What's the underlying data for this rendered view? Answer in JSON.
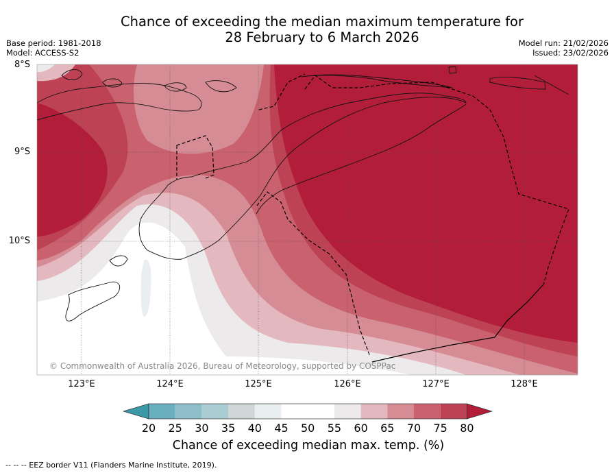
{
  "title": {
    "line1": "Chance of exceeding the median maximum temperature for",
    "line2": "28 February to 6 March 2026"
  },
  "meta": {
    "base_period": "Base period: 1981-2018",
    "model": "Model: ACCESS-S2",
    "model_run": "Model run: 21/02/2026",
    "issued": "Issued: 23/02/2026"
  },
  "map": {
    "lat_labels": [
      "8°S",
      "9°S",
      "10°S"
    ],
    "lon_labels": [
      "123°E",
      "124°E",
      "125°E",
      "126°E",
      "127°E",
      "128°E"
    ],
    "copyright": "© Commonwealth of Australia 2026, Bureau of Meteorology, supported by COSPPac"
  },
  "colorbar": {
    "ticks": [
      "20",
      "25",
      "30",
      "35",
      "40",
      "45",
      "50",
      "55",
      "60",
      "65",
      "70",
      "75",
      "80"
    ],
    "colors": {
      "lt20": "#3a9aa8",
      "c20_25": "#6aafbd",
      "c25_30": "#8ebfca",
      "c30_35": "#a9ccd2",
      "c35_40": "#d0d6d8",
      "c40_45": "#e9eef0",
      "c45_50": "#ffffff",
      "c50_55": "#ffffff",
      "c55_60": "#eceaea",
      "c60_65": "#e3b8be",
      "c65_70": "#d58c94",
      "c70_75": "#c9626e",
      "c75_80": "#bd4354",
      "gt80": "#b21e3a"
    },
    "label": "Chance of exceeding median max. temp. (%)"
  },
  "footnote": "--  --  -- EEZ border V11 (Flanders Marine Institute, 2019)."
}
